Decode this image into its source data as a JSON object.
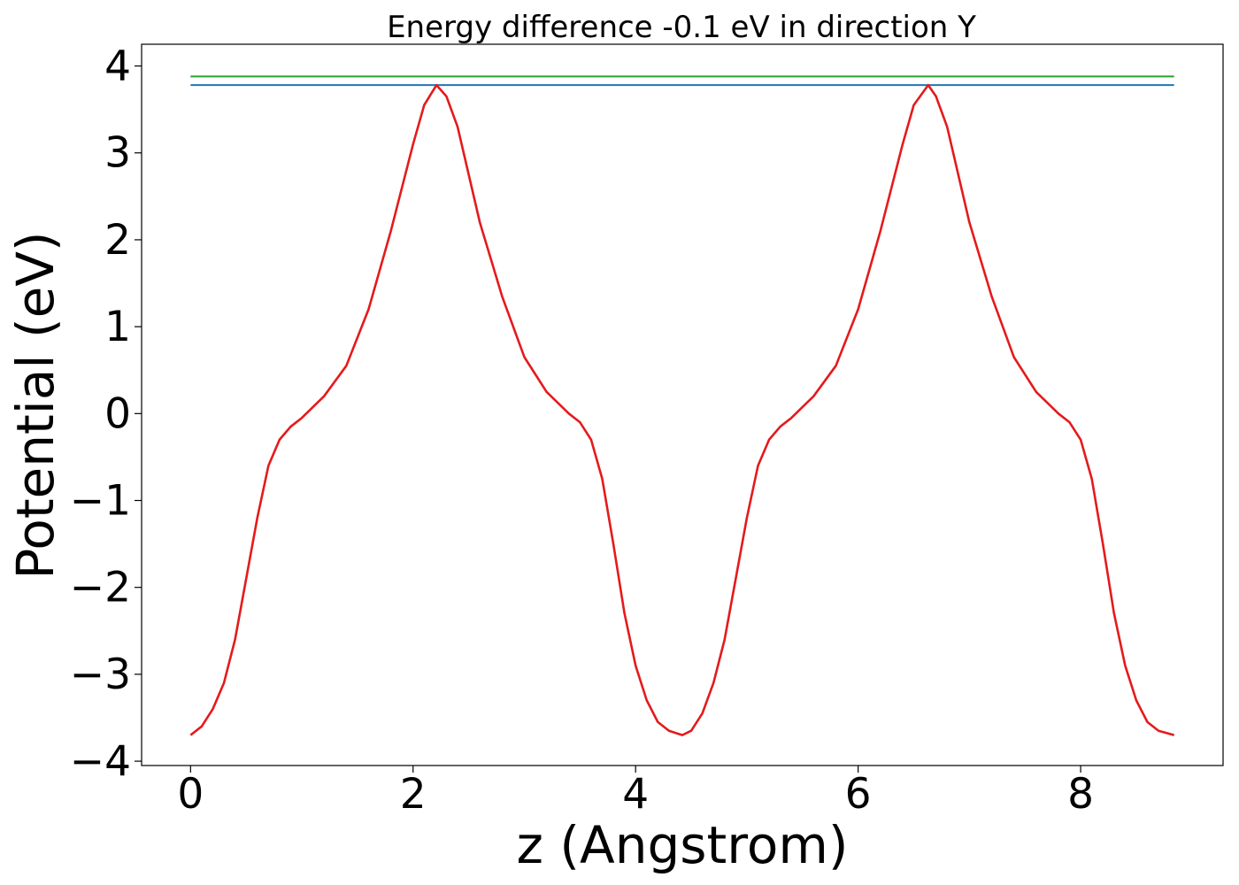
{
  "chart_data": {
    "type": "line",
    "title": "Energy difference -0.1 eV in direction Y",
    "xlabel": "z (Angstrom)",
    "ylabel": "Potential (eV)",
    "xlim": [
      -0.44,
      9.28
    ],
    "ylim": [
      -4.05,
      4.25
    ],
    "xticks": [
      {
        "value": 0,
        "label": "0"
      },
      {
        "value": 2,
        "label": "2"
      },
      {
        "value": 4,
        "label": "4"
      },
      {
        "value": 6,
        "label": "6"
      },
      {
        "value": 8,
        "label": "8"
      }
    ],
    "yticks": [
      {
        "value": -4,
        "label": "−4"
      },
      {
        "value": -3,
        "label": "−3"
      },
      {
        "value": -2,
        "label": "−2"
      },
      {
        "value": -1,
        "label": "−1"
      },
      {
        "value": 0,
        "label": "0"
      },
      {
        "value": 1,
        "label": "1"
      },
      {
        "value": 2,
        "label": "2"
      },
      {
        "value": 3,
        "label": "3"
      },
      {
        "value": 4,
        "label": "4"
      }
    ],
    "grid": false,
    "legend": "none",
    "series": [
      {
        "color": "#2ca02c",
        "x": [
          0,
          8.84
        ],
        "y": [
          3.88,
          3.88
        ]
      },
      {
        "color": "#1f77b4",
        "x": [
          0,
          8.84
        ],
        "y": [
          3.78,
          3.78
        ]
      },
      {
        "color": "#e41a1c",
        "x": [
          0,
          0.1,
          0.2,
          0.3,
          0.4,
          0.5,
          0.6,
          0.7,
          0.8,
          0.9,
          1.0,
          1.2,
          1.4,
          1.6,
          1.8,
          2.0,
          2.1,
          2.21,
          2.3,
          2.4,
          2.6,
          2.8,
          3.0,
          3.2,
          3.4,
          3.5,
          3.6,
          3.7,
          3.8,
          3.9,
          4.0,
          4.1,
          4.2,
          4.3,
          4.42,
          4.5,
          4.6,
          4.7,
          4.8,
          4.9,
          5.0,
          5.1,
          5.2,
          5.3,
          5.4,
          5.6,
          5.8,
          6.0,
          6.2,
          6.4,
          6.5,
          6.63,
          6.7,
          6.8,
          7.0,
          7.2,
          7.4,
          7.6,
          7.8,
          7.9,
          8.0,
          8.1,
          8.2,
          8.3,
          8.4,
          8.5,
          8.6,
          8.7,
          8.84
        ],
        "y": [
          -3.7,
          -3.6,
          -3.4,
          -3.1,
          -2.6,
          -1.9,
          -1.2,
          -0.6,
          -0.3,
          -0.15,
          -0.05,
          0.2,
          0.55,
          1.2,
          2.1,
          3.1,
          3.55,
          3.78,
          3.65,
          3.3,
          2.2,
          1.35,
          0.65,
          0.25,
          0.0,
          -0.1,
          -0.3,
          -0.75,
          -1.5,
          -2.3,
          -2.9,
          -3.3,
          -3.55,
          -3.65,
          -3.7,
          -3.65,
          -3.45,
          -3.1,
          -2.6,
          -1.9,
          -1.2,
          -0.6,
          -0.3,
          -0.15,
          -0.05,
          0.2,
          0.55,
          1.2,
          2.1,
          3.1,
          3.55,
          3.78,
          3.65,
          3.3,
          2.2,
          1.35,
          0.65,
          0.25,
          0.0,
          -0.1,
          -0.3,
          -0.75,
          -1.5,
          -2.3,
          -2.9,
          -3.3,
          -3.55,
          -3.65,
          -3.7
        ]
      }
    ]
  }
}
